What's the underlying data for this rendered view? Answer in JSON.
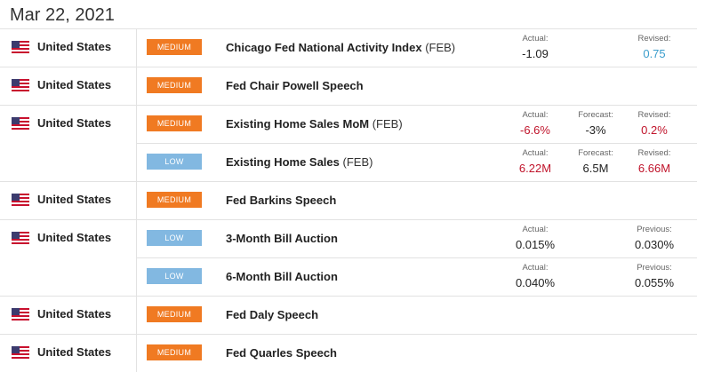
{
  "date_header": "Mar 22, 2021",
  "colors": {
    "medium": "#f07a22",
    "low": "#82b8e1",
    "negative": "#c0142b",
    "positive": "#3a9dcc"
  },
  "groups": [
    {
      "country": "United States",
      "flag": "us-flag-icon",
      "events": [
        {
          "impact": "MEDIUM",
          "impact_class": "medium",
          "name": "Chicago Fed National Activity Index",
          "period": "(FEB)",
          "actual_label": "Actual:",
          "actual": "-1.09",
          "forecast_label": "",
          "forecast": "",
          "last_label": "Revised:",
          "last": "0.75"
        }
      ]
    },
    {
      "country": "United States",
      "flag": "us-flag-icon",
      "events": [
        {
          "impact": "MEDIUM",
          "impact_class": "medium",
          "name": "Fed Chair Powell Speech",
          "period": "",
          "actual_label": "",
          "actual": "",
          "forecast_label": "",
          "forecast": "",
          "last_label": "",
          "last": ""
        }
      ]
    },
    {
      "country": "United States",
      "flag": "us-flag-icon",
      "events": [
        {
          "impact": "MEDIUM",
          "impact_class": "medium",
          "name": "Existing Home Sales MoM",
          "period": "(FEB)",
          "actual_label": "Actual:",
          "actual": "-6.6%",
          "forecast_label": "Forecast:",
          "forecast": "-3%",
          "last_label": "Revised:",
          "last": "0.2%"
        },
        {
          "impact": "LOW",
          "impact_class": "low",
          "name": "Existing Home Sales",
          "period": "(FEB)",
          "actual_label": "Actual:",
          "actual": "6.22M",
          "forecast_label": "Forecast:",
          "forecast": "6.5M",
          "last_label": "Revised:",
          "last": "6.66M"
        }
      ]
    },
    {
      "country": "United States",
      "flag": "us-flag-icon",
      "events": [
        {
          "impact": "MEDIUM",
          "impact_class": "medium",
          "name": "Fed Barkins Speech",
          "period": "",
          "actual_label": "",
          "actual": "",
          "forecast_label": "",
          "forecast": "",
          "last_label": "",
          "last": ""
        }
      ]
    },
    {
      "country": "United States",
      "flag": "us-flag-icon",
      "events": [
        {
          "impact": "LOW",
          "impact_class": "low",
          "name": "3-Month Bill Auction",
          "period": "",
          "actual_label": "Actual:",
          "actual": "0.015%",
          "forecast_label": "",
          "forecast": "",
          "last_label": "Previous:",
          "last": "0.030%"
        },
        {
          "impact": "LOW",
          "impact_class": "low",
          "name": "6-Month Bill Auction",
          "period": "",
          "actual_label": "Actual:",
          "actual": "0.040%",
          "forecast_label": "",
          "forecast": "",
          "last_label": "Previous:",
          "last": "0.055%"
        }
      ]
    },
    {
      "country": "United States",
      "flag": "us-flag-icon",
      "events": [
        {
          "impact": "MEDIUM",
          "impact_class": "medium",
          "name": "Fed Daly Speech",
          "period": "",
          "actual_label": "",
          "actual": "",
          "forecast_label": "",
          "forecast": "",
          "last_label": "",
          "last": ""
        }
      ]
    },
    {
      "country": "United States",
      "flag": "us-flag-icon",
      "events": [
        {
          "impact": "MEDIUM",
          "impact_class": "medium",
          "name": "Fed Quarles Speech",
          "period": "",
          "actual_label": "",
          "actual": "",
          "forecast_label": "",
          "forecast": "",
          "last_label": "",
          "last": ""
        }
      ]
    }
  ]
}
